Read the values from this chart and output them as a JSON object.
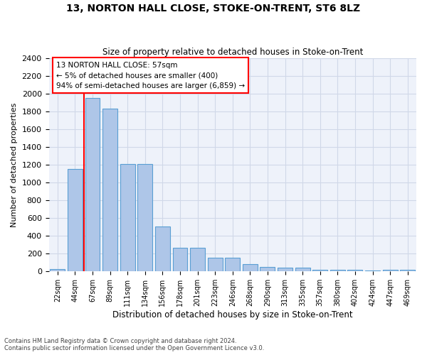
{
  "title": "13, NORTON HALL CLOSE, STOKE-ON-TRENT, ST6 8LZ",
  "subtitle": "Size of property relative to detached houses in Stoke-on-Trent",
  "xlabel": "Distribution of detached houses by size in Stoke-on-Trent",
  "ylabel": "Number of detached properties",
  "footnote1": "Contains HM Land Registry data © Crown copyright and database right 2024.",
  "footnote2": "Contains public sector information licensed under the Open Government Licence v3.0.",
  "bin_labels": [
    "22sqm",
    "44sqm",
    "67sqm",
    "89sqm",
    "111sqm",
    "134sqm",
    "156sqm",
    "178sqm",
    "201sqm",
    "223sqm",
    "246sqm",
    "268sqm",
    "290sqm",
    "313sqm",
    "335sqm",
    "357sqm",
    "380sqm",
    "402sqm",
    "424sqm",
    "447sqm",
    "469sqm"
  ],
  "bar_values": [
    30,
    1150,
    1950,
    1830,
    1210,
    1210,
    510,
    265,
    265,
    155,
    155,
    80,
    50,
    45,
    45,
    20,
    20,
    15,
    10,
    15,
    15
  ],
  "bar_color": "#aec6e8",
  "bar_edge_color": "#5a9fd4",
  "vline_color": "red",
  "annotation_text": "13 NORTON HALL CLOSE: 57sqm\n← 5% of detached houses are smaller (400)\n94% of semi-detached houses are larger (6,859) →",
  "annotation_box_color": "white",
  "annotation_box_edge": "red",
  "ylim": [
    0,
    2400
  ],
  "yticks": [
    0,
    200,
    400,
    600,
    800,
    1000,
    1200,
    1400,
    1600,
    1800,
    2000,
    2200,
    2400
  ],
  "grid_color": "#d0d8e8",
  "bg_color": "#eef2fa"
}
